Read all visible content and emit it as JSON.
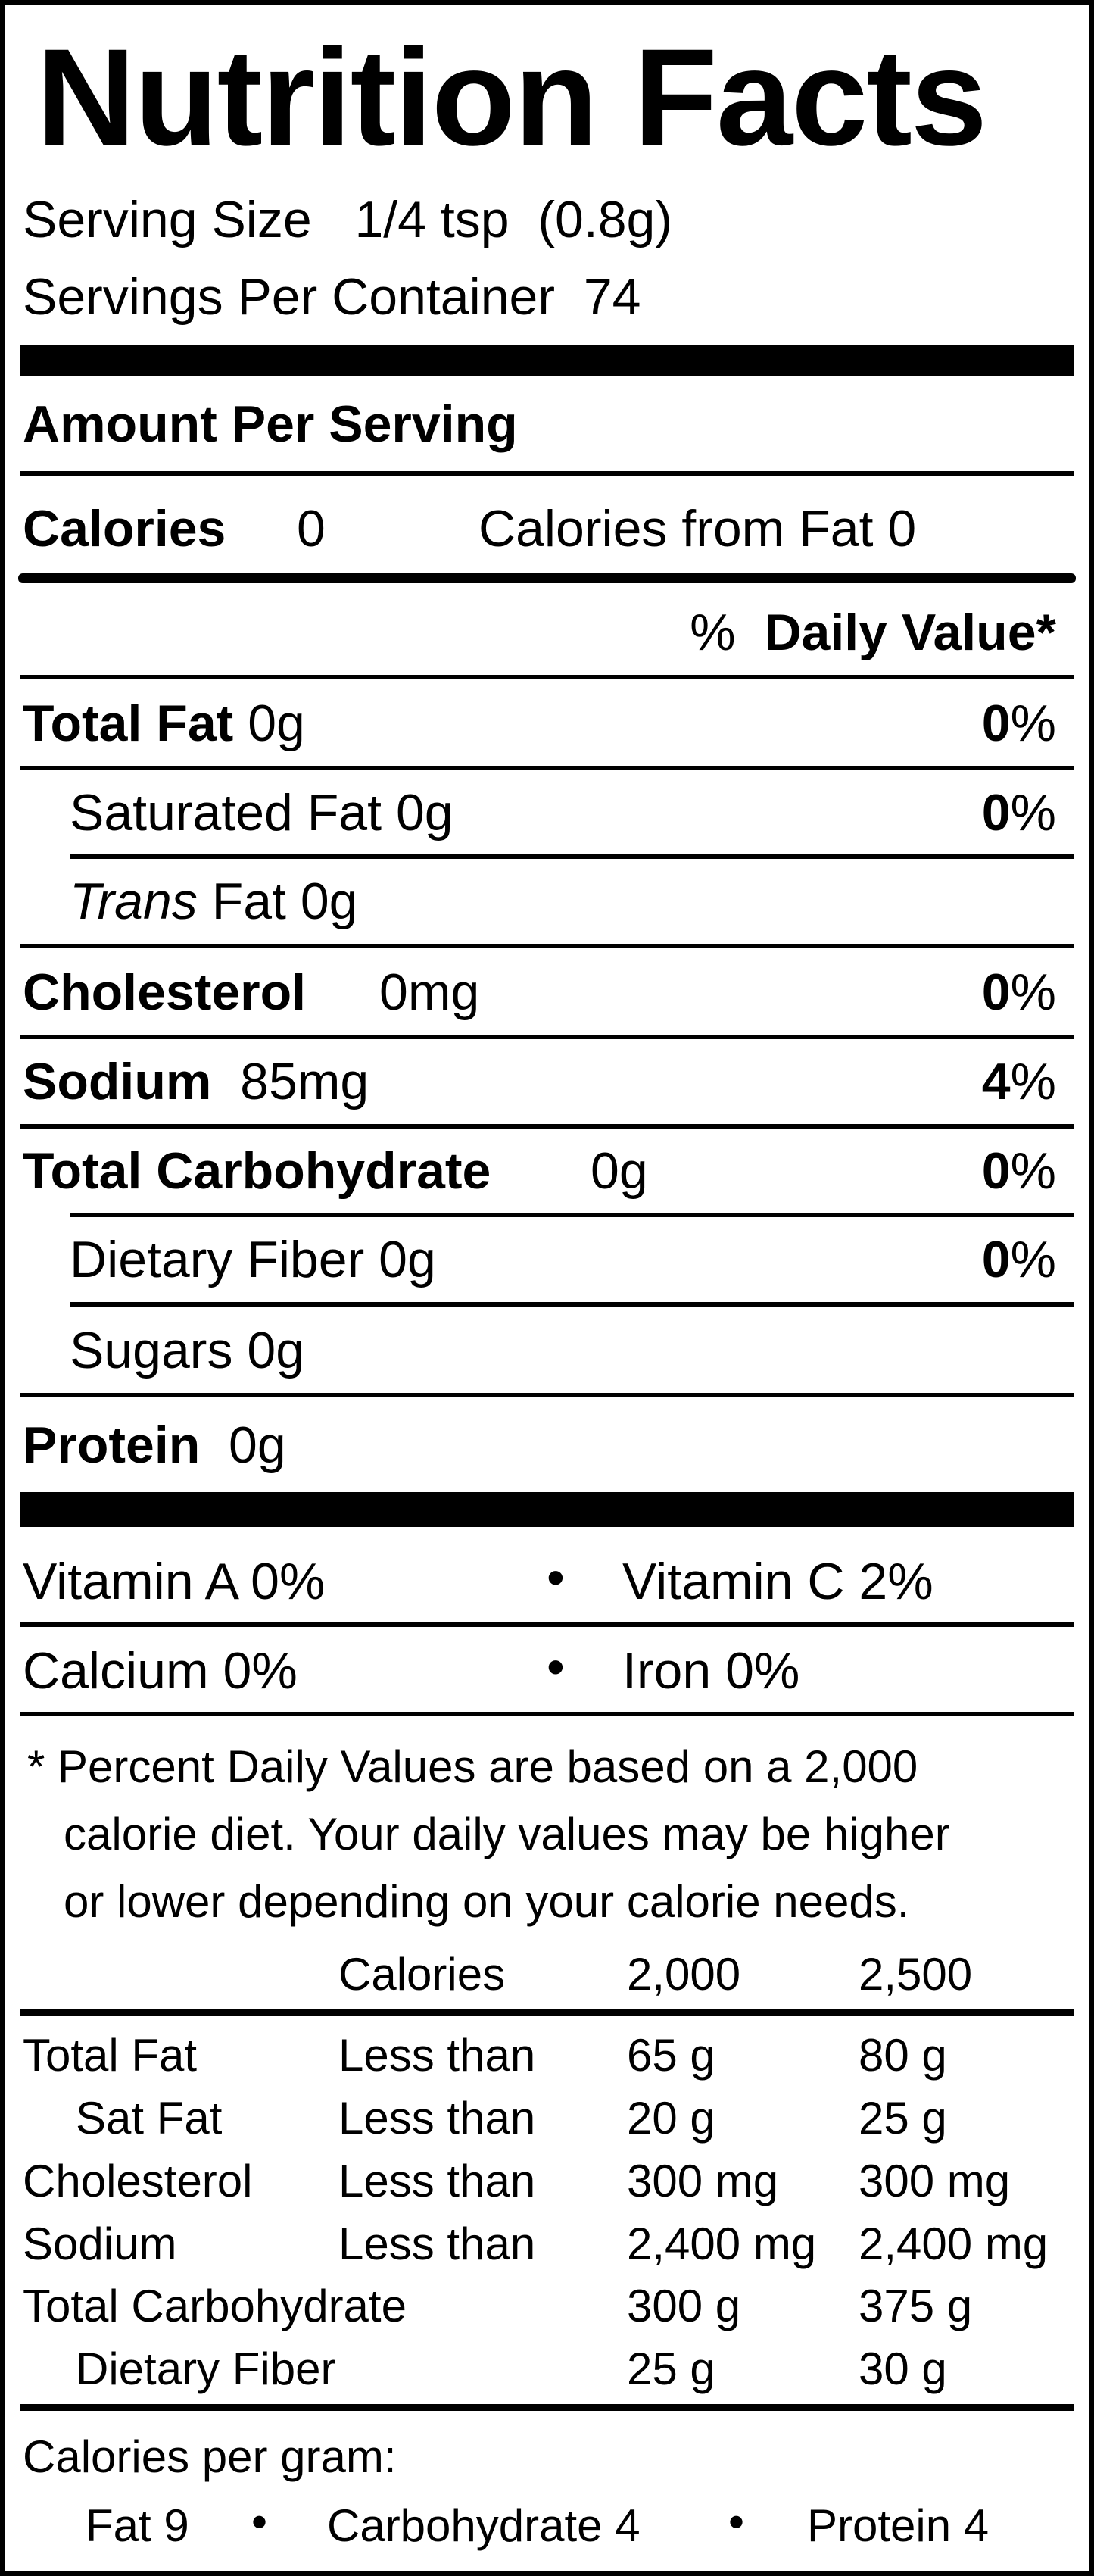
{
  "title": "Nutrition Facts",
  "serving_size_label": "Serving Size",
  "serving_size_value": "1/4 tsp  (0.8g)",
  "servings_label": "Servings Per Container",
  "servings_value": "74",
  "amount_per_serving": "Amount Per Serving",
  "calories_label": "Calories",
  "calories_value": "0",
  "calories_fat_label": "Calories from Fat",
  "calories_fat_value": "0",
  "dv_percent": "%",
  "dv_label": "Daily Value*",
  "percent_sign": "%",
  "nutrients": {
    "total_fat": {
      "label": "Total Fat",
      "amount": "0g",
      "pct": "0"
    },
    "sat_fat": {
      "label": "Saturated Fat",
      "amount": "0g",
      "pct": "0"
    },
    "trans_fat": {
      "label_italic": "Trans",
      "label": "Fat",
      "amount": "0g"
    },
    "cholesterol": {
      "label": "Cholesterol",
      "amount": "0mg",
      "pct": "0"
    },
    "sodium": {
      "label": "Sodium",
      "amount": "85mg",
      "pct": "4"
    },
    "total_carb": {
      "label": "Total Carbohydrate",
      "amount": "0g",
      "pct": "0"
    },
    "fiber": {
      "label": "Dietary Fiber",
      "amount": "0g",
      "pct": "0"
    },
    "sugars": {
      "label": "Sugars",
      "amount": "0g"
    },
    "protein": {
      "label": "Protein",
      "amount": "0g"
    }
  },
  "vitamins": {
    "vit_a": {
      "label": "Vitamin A",
      "value": "0%"
    },
    "vit_c": {
      "label": "Vitamin C",
      "value": "2%"
    },
    "calcium": {
      "label": "Calcium",
      "value": "0%"
    },
    "iron": {
      "label": "Iron",
      "value": "0%"
    },
    "bullet": "•"
  },
  "footnote": [
    "* Percent Daily Values are based on a 2,000",
    "calorie diet. Your daily values may be higher",
    "or lower depending on your calorie needs."
  ],
  "dv_table": {
    "header": [
      "Calories",
      "2,000",
      "2,500"
    ],
    "rows": [
      [
        "Total Fat",
        "Less than",
        "65 g",
        "80 g"
      ],
      [
        "Sat Fat",
        "Less than",
        "20 g",
        "25 g"
      ],
      [
        "Cholesterol",
        "Less than",
        "300 mg",
        "300 mg"
      ],
      [
        "Sodium",
        "Less than",
        "2,400 mg",
        "2,400 mg"
      ],
      [
        "Total Carbohydrate",
        "",
        "300 g",
        "375 g"
      ],
      [
        "Dietary Fiber",
        "",
        "25 g",
        "30 g"
      ]
    ]
  },
  "calories_per_gram": {
    "label": "Calories per gram:",
    "fat": "Fat 9",
    "carb": "Carbohydrate 4",
    "protein": "Protein 4",
    "bullet": "•"
  }
}
